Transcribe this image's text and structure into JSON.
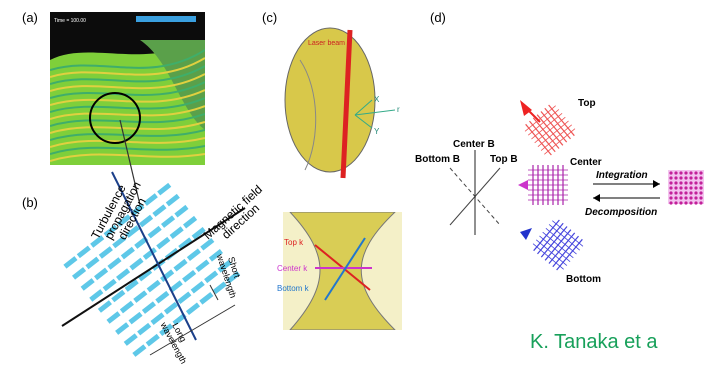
{
  "panels": {
    "a": {
      "label": "(a)",
      "time": "Time = 100.00"
    },
    "b": {
      "label": "(b)",
      "turbulence": [
        "Turbulence",
        "propagation",
        "direction"
      ],
      "magnetic": [
        "Magnetic field",
        "direction"
      ],
      "short": [
        "Short",
        "wavelength"
      ],
      "long": [
        "Long",
        "wavelength"
      ]
    },
    "c": {
      "label": "(c)",
      "laser": "Laser beam",
      "x": "X",
      "r": "r",
      "y": "Y",
      "top_k": "Top k",
      "center_k": "Center k",
      "bottom_k": "Bottom k"
    },
    "d": {
      "label": "(d)",
      "center_b": "Center B",
      "bottom_b": "Bottom B",
      "top_b": "Top B",
      "top": "Top",
      "center": "Center",
      "integration": "Integration",
      "decomposition": "Decomposition",
      "bottom": "Bottom"
    }
  },
  "credit": "K. Tanaka et a"
}
